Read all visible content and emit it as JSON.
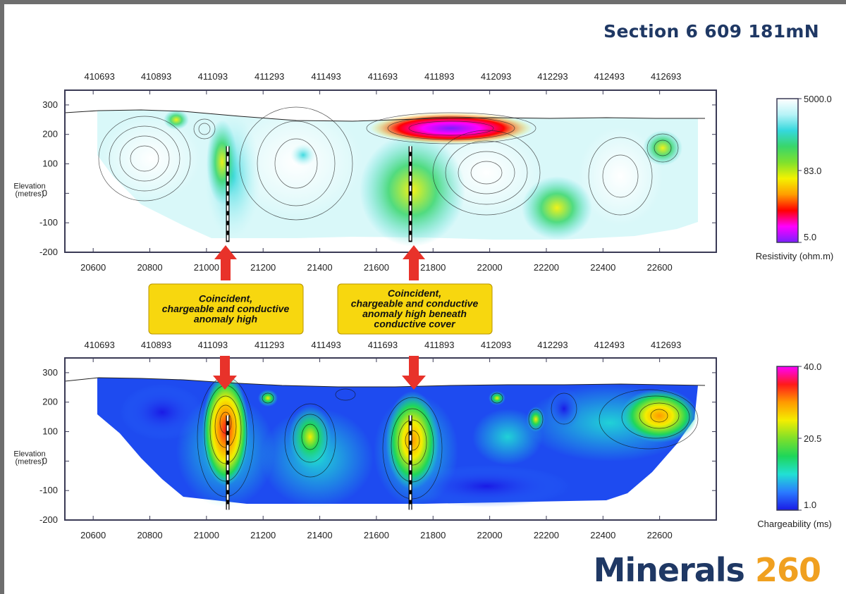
{
  "title": "Section 6 609 181mN",
  "logo": {
    "word": "Minerals",
    "number": "260"
  },
  "annotations": [
    {
      "lines": [
        "Coincident,",
        "chargeable and conductive",
        "anomaly high"
      ]
    },
    {
      "lines": [
        "Coincident,",
        "chargeable and conductive",
        "anomaly high beneath",
        "conductive cover"
      ]
    }
  ],
  "colors": {
    "title": "#1f3864",
    "logo_number": "#f0a020",
    "arrow": "#e8322a",
    "callout": "#f7d70f",
    "plot_border": "#3a3a55"
  },
  "chart_data": [
    {
      "type": "heatmap",
      "name": "resistivity-section",
      "top_axis_ticks": [
        410693,
        410893,
        411093,
        411293,
        411493,
        411693,
        411893,
        412093,
        412293,
        412493,
        412693
      ],
      "bottom_axis_ticks": [
        20600,
        20800,
        21000,
        21200,
        21400,
        21600,
        21800,
        22000,
        22200,
        22400,
        22600
      ],
      "y_ticks": [
        300,
        200,
        100,
        0,
        -100,
        -200
      ],
      "ylabel": [
        "Elevation",
        "(metres)"
      ],
      "xlim": [
        20500,
        22800
      ],
      "ylim": [
        -200,
        350
      ],
      "drillholes": [
        {
          "x": 21075,
          "top": 160,
          "bottom": -165
        },
        {
          "x": 21720,
          "top": 160,
          "bottom": -165
        }
      ],
      "colorbar": {
        "label": "Resistivity (ohm.m)",
        "ticks": [
          "5000.0",
          "83.0",
          "5.0"
        ],
        "stops": [
          "#ffffff",
          "#b7f3f7",
          "#35d8dd",
          "#39d66a",
          "#7fe12d",
          "#f4f200",
          "#ff9d00",
          "#ff0000",
          "#ff00ff",
          "#7a1fff"
        ]
      }
    },
    {
      "type": "heatmap",
      "name": "chargeability-section",
      "top_axis_ticks": [
        410693,
        410893,
        411093,
        411293,
        411493,
        411693,
        411893,
        412093,
        412293,
        412493,
        412693
      ],
      "bottom_axis_ticks": [
        20600,
        20800,
        21000,
        21200,
        21400,
        21600,
        21800,
        22000,
        22200,
        22400,
        22600
      ],
      "y_ticks": [
        300,
        200,
        100,
        0,
        -100,
        -200
      ],
      "ylabel": [
        "Elevation",
        "(metres)"
      ],
      "xlim": [
        20500,
        22800
      ],
      "ylim": [
        -200,
        350
      ],
      "drillholes": [
        {
          "x": 21075,
          "top": 155,
          "bottom": -165
        },
        {
          "x": 21720,
          "top": 155,
          "bottom": -165
        }
      ],
      "colorbar": {
        "label": "Chargeability (ms)",
        "ticks": [
          "40.0",
          "20.5",
          "1.0"
        ],
        "stops": [
          "#ff00ff",
          "#ff1a1a",
          "#ff9a00",
          "#f4ee00",
          "#7fe02a",
          "#1ed65a",
          "#21e0d4",
          "#2a7bff",
          "#1a1ae6"
        ]
      }
    }
  ]
}
